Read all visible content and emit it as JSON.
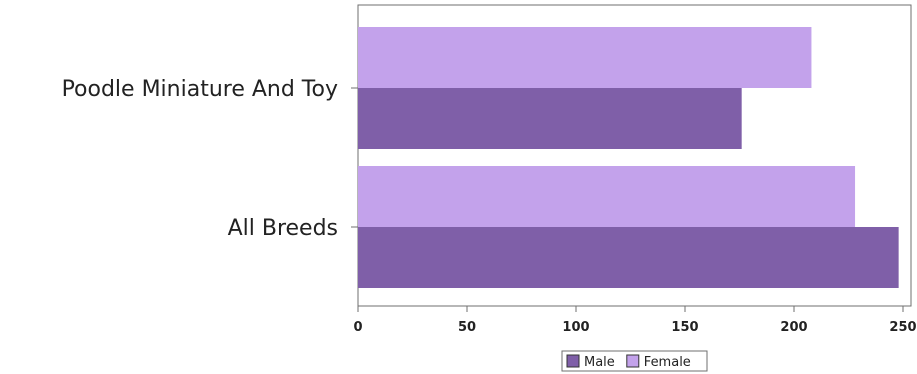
{
  "chart_data": {
    "type": "bar",
    "orientation": "horizontal",
    "categories": [
      "Poodle Miniature And Toy",
      "All Breeds"
    ],
    "series": [
      {
        "name": "Male",
        "color": "#7f5fa8",
        "values": [
          176,
          248
        ]
      },
      {
        "name": "Female",
        "color": "#c3a2eb",
        "values": [
          208,
          228
        ]
      }
    ],
    "xlim": [
      0,
      250
    ],
    "xticks": [
      0,
      50,
      100,
      150,
      200,
      250
    ],
    "xlabel": "",
    "ylabel": "",
    "title": "",
    "grid": false,
    "legend_position": "bottom"
  }
}
